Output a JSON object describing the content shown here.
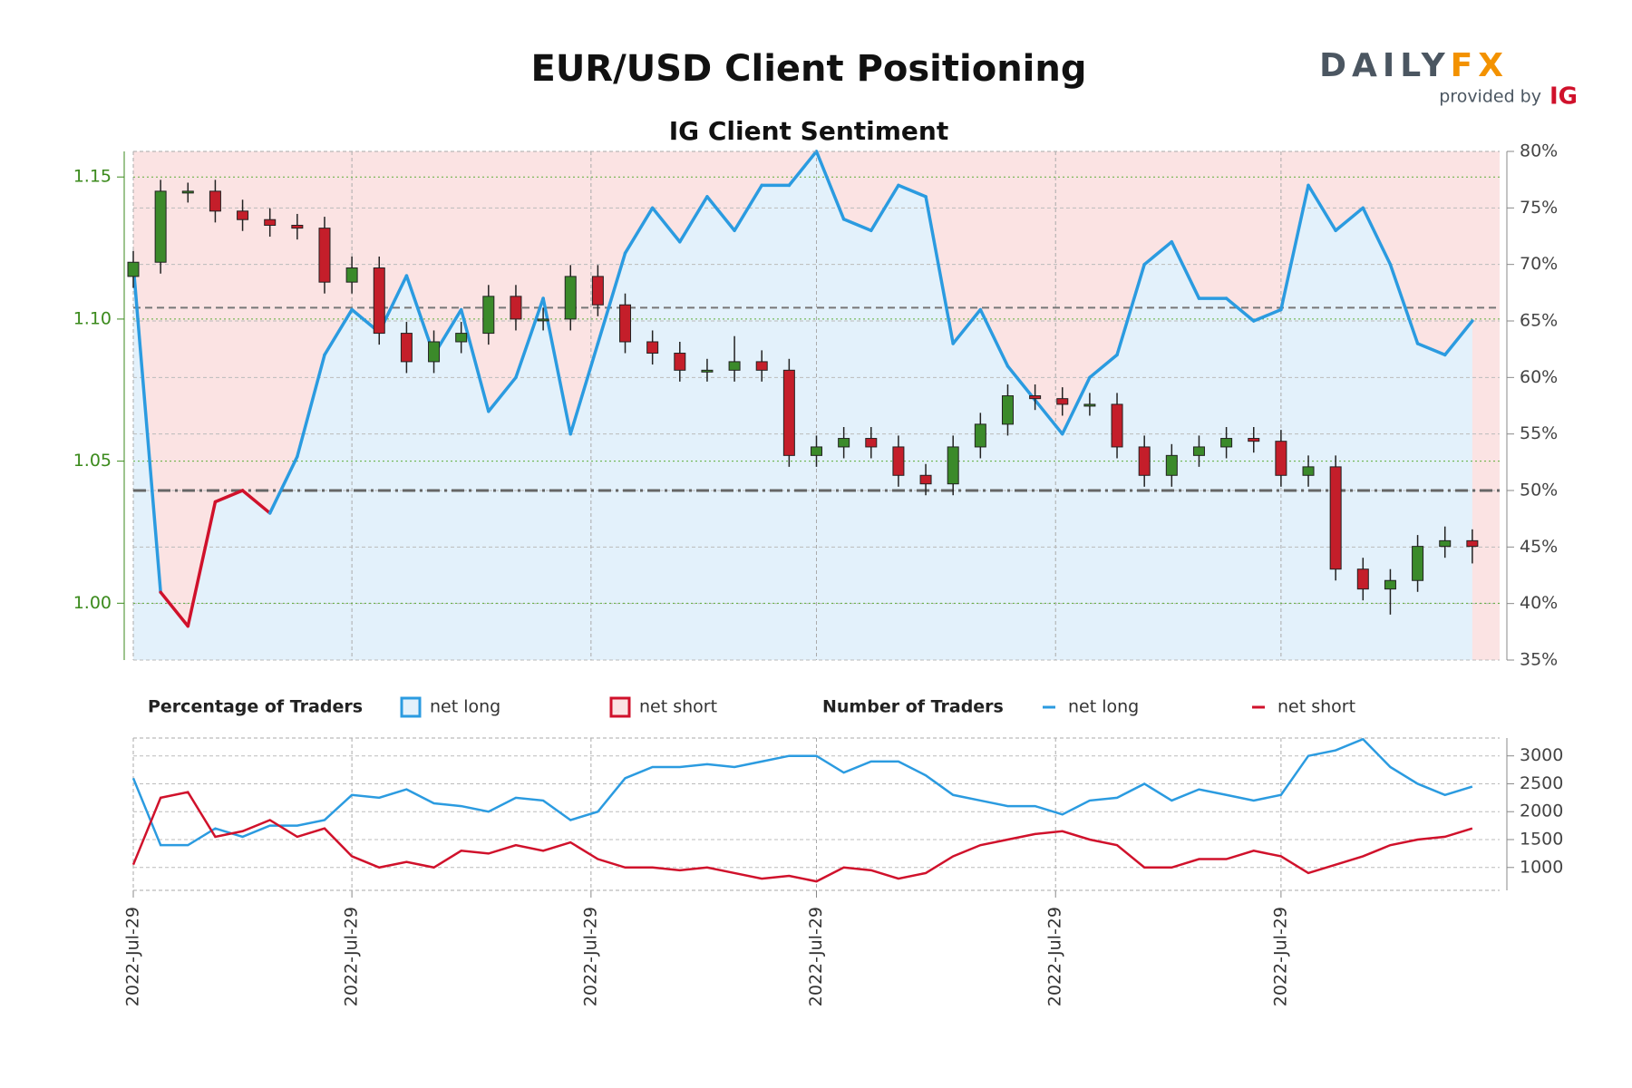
{
  "logo": {
    "brand_left": "DAILY",
    "brand_right": "FX",
    "tagline": "provided by",
    "partner": "IG"
  },
  "chart_data": [
    {
      "type": "candlestick",
      "title": "EUR/USD Client Positioning",
      "subtitle": "IG Client Sentiment",
      "legend_title": "Percentage of Traders",
      "legend": [
        {
          "name": "net long",
          "color": "#2b9be0",
          "fill": "#e3f1fb"
        },
        {
          "name": "net short",
          "color": "#d0112b",
          "fill": "#fbe3e3"
        }
      ],
      "x": [
        0,
        2,
        4,
        6,
        8,
        10,
        12,
        14,
        16,
        18,
        20,
        22,
        24,
        26,
        28,
        30,
        32,
        34,
        36,
        38,
        40,
        42,
        44,
        46,
        48,
        50,
        52,
        54,
        56,
        58,
        60,
        62,
        64,
        66,
        68,
        70,
        72,
        74,
        76,
        78,
        80,
        82,
        84,
        86,
        88,
        90,
        92,
        94,
        96,
        98
      ],
      "xlim": [
        0,
        100
      ],
      "open": [
        1.115,
        1.12,
        1.145,
        1.145,
        1.138,
        1.135,
        1.133,
        1.132,
        1.113,
        1.118,
        1.095,
        1.085,
        1.092,
        1.095,
        1.108,
        1.1,
        1.1,
        1.115,
        1.105,
        1.092,
        1.088,
        1.082,
        1.082,
        1.085,
        1.082,
        1.052,
        1.055,
        1.058,
        1.055,
        1.045,
        1.042,
        1.055,
        1.063,
        1.073,
        1.072,
        1.07,
        1.07,
        1.055,
        1.045,
        1.052,
        1.055,
        1.058,
        1.057,
        1.045,
        1.048,
        1.012,
        1.005,
        1.008,
        1.02,
        1.022
      ],
      "high": [
        1.124,
        1.149,
        1.148,
        1.149,
        1.142,
        1.139,
        1.137,
        1.136,
        1.122,
        1.122,
        1.099,
        1.096,
        1.099,
        1.112,
        1.112,
        1.104,
        1.119,
        1.119,
        1.109,
        1.096,
        1.092,
        1.086,
        1.094,
        1.089,
        1.086,
        1.059,
        1.062,
        1.062,
        1.059,
        1.049,
        1.059,
        1.067,
        1.077,
        1.077,
        1.076,
        1.074,
        1.074,
        1.059,
        1.056,
        1.059,
        1.062,
        1.062,
        1.061,
        1.052,
        1.052,
        1.016,
        1.012,
        1.024,
        1.027,
        1.026
      ],
      "low": [
        1.111,
        1.116,
        1.141,
        1.134,
        1.131,
        1.129,
        1.128,
        1.109,
        1.109,
        1.091,
        1.081,
        1.081,
        1.088,
        1.091,
        1.096,
        1.096,
        1.096,
        1.101,
        1.088,
        1.084,
        1.078,
        1.078,
        1.078,
        1.078,
        1.048,
        1.048,
        1.051,
        1.051,
        1.041,
        1.038,
        1.038,
        1.051,
        1.059,
        1.068,
        1.066,
        1.066,
        1.051,
        1.041,
        1.041,
        1.048,
        1.051,
        1.053,
        1.041,
        1.041,
        1.008,
        1.001,
        0.996,
        1.004,
        1.016,
        1.014
      ],
      "close": [
        1.12,
        1.145,
        1.145,
        1.138,
        1.135,
        1.133,
        1.132,
        1.113,
        1.118,
        1.095,
        1.085,
        1.092,
        1.095,
        1.108,
        1.1,
        1.1,
        1.115,
        1.105,
        1.092,
        1.088,
        1.082,
        1.082,
        1.085,
        1.082,
        1.052,
        1.055,
        1.058,
        1.055,
        1.045,
        1.042,
        1.055,
        1.063,
        1.073,
        1.072,
        1.07,
        1.07,
        1.055,
        1.045,
        1.052,
        1.055,
        1.058,
        1.057,
        1.045,
        1.048,
        1.012,
        1.005,
        1.008,
        1.02,
        1.022,
        1.02
      ],
      "up_color": "#3b8a2a",
      "down_color": "#c41e2a",
      "ylim": [
        0.98,
        1.159
      ],
      "yticks": [
        {
          "value": 1,
          "label": "1.00"
        },
        1.05,
        {
          "value": 1.1,
          "label": "1.10"
        },
        1.15
      ],
      "hline": 1.104,
      "y2lim": [
        35,
        80
      ],
      "y2ticks": [
        {
          "value": 35,
          "label": "35%"
        },
        {
          "value": 40,
          "label": "40%"
        },
        {
          "value": 45,
          "label": "45%"
        },
        {
          "value": 50,
          "label": "50%"
        },
        {
          "value": 55,
          "label": "55%"
        },
        {
          "value": 60,
          "label": "60%"
        },
        {
          "value": 65,
          "label": "65%"
        },
        {
          "value": 70,
          "label": "70%"
        },
        {
          "value": 75,
          "label": "75%"
        },
        {
          "value": 80,
          "label": "80%"
        }
      ],
      "threshold": 50,
      "series": [
        {
          "name": "net long",
          "color": "#2b9be0",
          "axis": "y2",
          "values": [
            70,
            41,
            38,
            49,
            50,
            48,
            53,
            62,
            66,
            64,
            69,
            62,
            66,
            57,
            60,
            67,
            55,
            63,
            71,
            75,
            72,
            76,
            73,
            77,
            77,
            80,
            74,
            73,
            77,
            76,
            63,
            66,
            61,
            58,
            55,
            60,
            62,
            70,
            72,
            67,
            67,
            65,
            66,
            77,
            73,
            75,
            70,
            63,
            62,
            65
          ]
        }
      ]
    },
    {
      "type": "line",
      "legend_title": "Number of Traders",
      "x": [
        0,
        2,
        4,
        6,
        8,
        10,
        12,
        14,
        16,
        18,
        20,
        22,
        24,
        26,
        28,
        30,
        32,
        34,
        36,
        38,
        40,
        42,
        44,
        46,
        48,
        50,
        52,
        54,
        56,
        58,
        60,
        62,
        64,
        66,
        68,
        70,
        72,
        74,
        76,
        78,
        80,
        82,
        84,
        86,
        88,
        90,
        92,
        94,
        96,
        98
      ],
      "xlim": [
        0,
        100
      ],
      "xticks": [
        {
          "value": 0,
          "label": "2022-Jul-29"
        },
        {
          "value": 16,
          "label": "2022-Jul-29"
        },
        {
          "value": 33.5,
          "label": "2022-Jul-29"
        },
        {
          "value": 50,
          "label": "2022-Jul-29"
        },
        {
          "value": 67.5,
          "label": "2022-Jul-29"
        },
        {
          "value": 84,
          "label": "2022-Jul-29"
        }
      ],
      "ylim": [
        590,
        3320
      ],
      "yticks": [
        1000,
        1500,
        2000,
        2500,
        3000
      ],
      "series": [
        {
          "name": "net long",
          "color": "#2b9be0",
          "values": [
            2600,
            1400,
            1400,
            1700,
            1550,
            1750,
            1750,
            1850,
            2300,
            2250,
            2400,
            2150,
            2100,
            2000,
            2250,
            2200,
            1850,
            2000,
            2600,
            2800,
            2800,
            2850,
            2800,
            2900,
            3000,
            3000,
            2700,
            2900,
            2900,
            2650,
            2300,
            2200,
            2100,
            2100,
            1950,
            2200,
            2250,
            2500,
            2200,
            2400,
            2300,
            2200,
            2300,
            3000,
            3100,
            3300,
            2800,
            2500,
            2300,
            2450
          ]
        },
        {
          "name": "net short",
          "color": "#d0112b",
          "values": [
            1050,
            2250,
            2350,
            1550,
            1650,
            1850,
            1550,
            1700,
            1200,
            1000,
            1100,
            1000,
            1300,
            1250,
            1400,
            1300,
            1450,
            1150,
            1000,
            1000,
            950,
            1000,
            900,
            800,
            850,
            750,
            1000,
            950,
            800,
            900,
            1200,
            1400,
            1500,
            1600,
            1650,
            1500,
            1400,
            1000,
            1000,
            1150,
            1150,
            1300,
            1200,
            900,
            1050,
            1200,
            1400,
            1500,
            1550,
            1700
          ]
        }
      ]
    }
  ]
}
